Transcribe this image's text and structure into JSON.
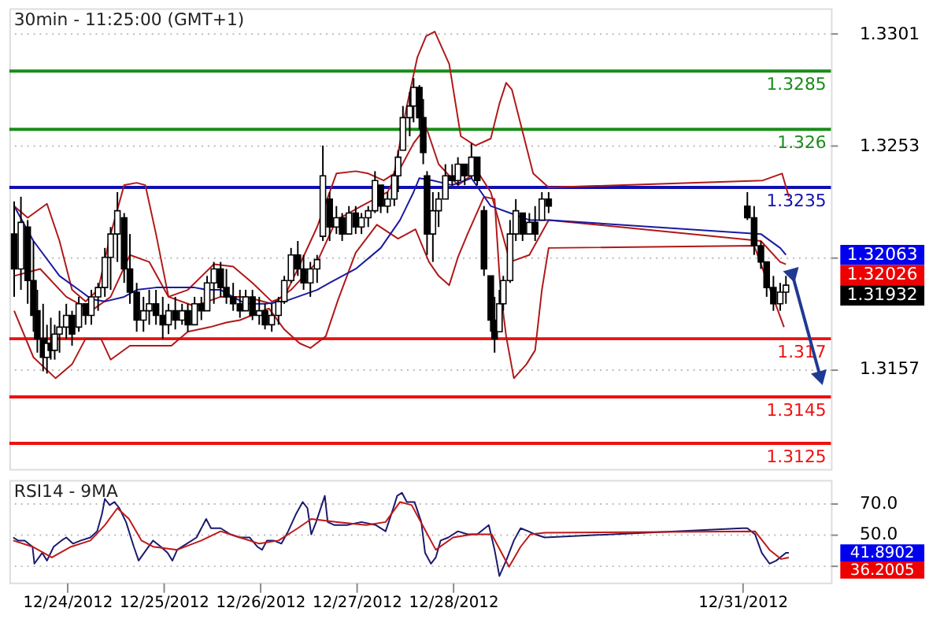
{
  "chart_data": [
    {
      "type": "candlestick",
      "title": "30min - 11:25:00 (GMT+1)",
      "x": [
        "2012-12-23T10:48",
        "2012-12-23T12:29",
        "2012-12-23T14:10",
        "2012-12-23T15:36",
        "2012-12-23T16:34",
        "2012-12-23T18:00",
        "2012-12-23T18:58",
        "2012-12-23T19:55",
        "2012-12-23T20:53",
        "2012-12-23T22:05",
        "2012-12-23T23:46",
        "2012-12-24T01:12",
        "2012-12-24T02:53",
        "2012-12-24T04:34",
        "2012-12-24T06:00",
        "2012-12-24T07:41",
        "2012-12-24T09:22",
        "2012-12-24T10:48",
        "2012-12-24T12:29",
        "2012-12-24T14:10",
        "2012-12-24T15:36",
        "2012-12-24T17:17",
        "2012-12-24T18:58",
        "2012-12-24T20:24",
        "2012-12-24T22:05",
        "2012-12-24T23:46",
        "2012-12-25T01:12",
        "2012-12-25T02:53",
        "2012-12-25T04:34",
        "2012-12-25T06:00",
        "2012-12-25T07:41",
        "2012-12-25T09:22",
        "2012-12-25T10:48",
        "2012-12-25T12:29",
        "2012-12-25T14:10",
        "2012-12-25T15:36",
        "2012-12-25T17:17",
        "2012-12-25T18:58",
        "2012-12-25T20:24",
        "2012-12-25T22:05",
        "2012-12-25T23:46",
        "2012-12-26T01:12",
        "2012-12-26T02:53",
        "2012-12-26T04:34",
        "2012-12-26T06:00",
        "2012-12-26T07:41",
        "2012-12-26T09:22",
        "2012-12-26T10:48",
        "2012-12-26T12:29",
        "2012-12-26T14:10",
        "2012-12-26T15:36",
        "2012-12-26T17:17",
        "2012-12-26T18:58",
        "2012-12-26T20:24",
        "2012-12-26T22:05",
        "2012-12-26T23:46",
        "2012-12-27T01:12",
        "2012-12-27T02:53",
        "2012-12-27T04:34",
        "2012-12-27T06:00",
        "2012-12-27T07:41",
        "2012-12-27T09:22",
        "2012-12-27T10:19",
        "2012-12-27T11:31",
        "2012-12-27T13:12",
        "2012-12-27T14:10",
        "2012-12-27T15:36",
        "2012-12-27T16:34",
        "2012-12-27T17:31",
        "2012-12-27T18:58",
        "2012-12-27T20:24",
        "2012-12-27T22:05",
        "2012-12-27T23:46",
        "2012-12-28T01:12",
        "2012-12-28T02:53",
        "2012-12-28T04:34",
        "2012-12-28T06:00",
        "2012-12-28T07:41",
        "2012-12-28T09:22",
        "2012-12-28T10:19",
        "2012-12-28T11:31",
        "2012-12-28T12:29",
        "2012-12-28T14:10",
        "2012-12-28T15:36",
        "2012-12-28T17:17",
        "2012-12-28T18:58",
        "2012-12-28T20:24",
        "2012-12-28T22:05",
        "2012-12-28T23:46",
        "2012-12-31T01:12",
        "2012-12-31T02:53",
        "2012-12-31T04:34",
        "2012-12-31T06:00",
        "2012-12-31T07:41",
        "2012-12-31T09:22",
        "2012-12-31T10:48"
      ],
      "ohlc": [
        [
          1.3215,
          1.3229,
          1.3188,
          1.32
        ],
        [
          1.32,
          1.3231,
          1.3191,
          1.322
        ],
        [
          1.3218,
          1.3221,
          1.3185,
          1.3195
        ],
        [
          1.3195,
          1.3212,
          1.3173,
          1.318
        ],
        [
          1.3182,
          1.3191,
          1.3164,
          1.317
        ],
        [
          1.317,
          1.3185,
          1.3156,
          1.3162
        ],
        [
          1.3162,
          1.3176,
          1.3155,
          1.3168
        ],
        [
          1.3168,
          1.3179,
          1.3161,
          1.3165
        ],
        [
          1.3165,
          1.3176,
          1.3161,
          1.3172
        ],
        [
          1.3172,
          1.3182,
          1.3164,
          1.3175
        ],
        [
          1.3175,
          1.3185,
          1.317,
          1.318
        ],
        [
          1.318,
          1.3182,
          1.3167,
          1.3172
        ],
        [
          1.3175,
          1.3188,
          1.3173,
          1.3185
        ],
        [
          1.3185,
          1.3185,
          1.3176,
          1.318
        ],
        [
          1.318,
          1.3191,
          1.3176,
          1.3188
        ],
        [
          1.3188,
          1.3194,
          1.3182,
          1.3192
        ],
        [
          1.3192,
          1.3209,
          1.3188,
          1.3205
        ],
        [
          1.3205,
          1.3218,
          1.3191,
          1.3215
        ],
        [
          1.3215,
          1.3233,
          1.3203,
          1.3225
        ],
        [
          1.3222,
          1.3224,
          1.3194,
          1.32
        ],
        [
          1.32,
          1.3215,
          1.3185,
          1.319
        ],
        [
          1.319,
          1.3194,
          1.3173,
          1.3178
        ],
        [
          1.3178,
          1.3188,
          1.3173,
          1.3182
        ],
        [
          1.3182,
          1.3191,
          1.3176,
          1.3185
        ],
        [
          1.3185,
          1.3191,
          1.3176,
          1.318
        ],
        [
          1.318,
          1.3188,
          1.317,
          1.3176
        ],
        [
          1.3176,
          1.3185,
          1.3172,
          1.3182
        ],
        [
          1.3182,
          1.3188,
          1.3174,
          1.3178
        ],
        [
          1.3178,
          1.3185,
          1.3176,
          1.3182
        ],
        [
          1.3182,
          1.3185,
          1.3173,
          1.3176
        ],
        [
          1.3176,
          1.3188,
          1.3176,
          1.3185
        ],
        [
          1.3185,
          1.3188,
          1.3178,
          1.3182
        ],
        [
          1.3182,
          1.3197,
          1.3182,
          1.3194
        ],
        [
          1.3194,
          1.3203,
          1.3185,
          1.32
        ],
        [
          1.32,
          1.3203,
          1.3188,
          1.3192
        ],
        [
          1.3192,
          1.32,
          1.3185,
          1.3188
        ],
        [
          1.3188,
          1.3194,
          1.3182,
          1.3185
        ],
        [
          1.3185,
          1.3191,
          1.3179,
          1.3182
        ],
        [
          1.3182,
          1.3191,
          1.3182,
          1.3188
        ],
        [
          1.3188,
          1.3191,
          1.3178,
          1.318
        ],
        [
          1.318,
          1.3188,
          1.3176,
          1.3182
        ],
        [
          1.3182,
          1.3185,
          1.3174,
          1.3176
        ],
        [
          1.3176,
          1.3185,
          1.3173,
          1.318
        ],
        [
          1.318,
          1.3188,
          1.3176,
          1.3186
        ],
        [
          1.3186,
          1.3197,
          1.3185,
          1.3195
        ],
        [
          1.3195,
          1.3209,
          1.3194,
          1.3206
        ],
        [
          1.3206,
          1.3212,
          1.3197,
          1.32
        ],
        [
          1.32,
          1.3206,
          1.3191,
          1.3194
        ],
        [
          1.3194,
          1.3203,
          1.3188,
          1.32
        ],
        [
          1.32,
          1.3206,
          1.3194,
          1.3204
        ],
        [
          1.3214,
          1.3253,
          1.3212,
          1.324
        ],
        [
          1.323,
          1.3233,
          1.3212,
          1.3218
        ],
        [
          1.3218,
          1.3227,
          1.3215,
          1.3222
        ],
        [
          1.3222,
          1.3224,
          1.3212,
          1.3215
        ],
        [
          1.3215,
          1.3227,
          1.3215,
          1.3224
        ],
        [
          1.3224,
          1.3227,
          1.3215,
          1.3218
        ],
        [
          1.3218,
          1.3224,
          1.3215,
          1.3222
        ],
        [
          1.3222,
          1.3227,
          1.3218,
          1.3225
        ],
        [
          1.3225,
          1.3242,
          1.3224,
          1.3238
        ],
        [
          1.3236,
          1.3236,
          1.3224,
          1.3227
        ],
        [
          1.3227,
          1.3233,
          1.3224,
          1.323
        ],
        [
          1.323,
          1.3242,
          1.3227,
          1.324
        ],
        [
          1.324,
          1.3251,
          1.3233,
          1.3248
        ],
        [
          1.3251,
          1.327,
          1.3251,
          1.3265
        ],
        [
          1.3265,
          1.3276,
          1.3257,
          1.327
        ],
        [
          1.327,
          1.3282,
          1.3263,
          1.3278
        ],
        [
          1.3278,
          1.3279,
          1.326,
          1.3265
        ],
        [
          1.3265,
          1.3273,
          1.3245,
          1.325
        ],
        [
          1.324,
          1.3242,
          1.3206,
          1.3215
        ],
        [
          1.3215,
          1.3233,
          1.3203,
          1.3225
        ],
        [
          1.3225,
          1.3233,
          1.3218,
          1.323
        ],
        [
          1.323,
          1.3245,
          1.323,
          1.324
        ],
        [
          1.324,
          1.3245,
          1.3236,
          1.3238
        ],
        [
          1.3238,
          1.3248,
          1.3236,
          1.3245
        ],
        [
          1.3245,
          1.3245,
          1.3236,
          1.324
        ],
        [
          1.324,
          1.3254,
          1.3239,
          1.3248
        ],
        [
          1.3248,
          1.3248,
          1.3236,
          1.3238
        ],
        [
          1.3225,
          1.3227,
          1.3197,
          1.32
        ],
        [
          1.3197,
          1.3197,
          1.3173,
          1.3178
        ],
        [
          1.3178,
          1.3188,
          1.3164,
          1.317
        ],
        [
          1.3173,
          1.3191,
          1.3173,
          1.3185
        ],
        [
          1.3185,
          1.3197,
          1.3182,
          1.3195
        ],
        [
          1.3195,
          1.3221,
          1.3194,
          1.3215
        ],
        [
          1.3215,
          1.323,
          1.3212,
          1.3225
        ],
        [
          1.3224,
          1.3224,
          1.3212,
          1.3215
        ],
        [
          1.3215,
          1.3224,
          1.3215,
          1.322
        ],
        [
          1.322,
          1.3227,
          1.3212,
          1.3215
        ],
        [
          1.3221,
          1.3233,
          1.3221,
          1.323
        ],
        [
          1.323,
          1.3233,
          1.3224,
          1.3227
        ],
        [
          1.3227,
          1.3233,
          1.3221,
          1.3222
        ],
        [
          1.3222,
          1.3227,
          1.3206,
          1.321
        ],
        [
          1.321,
          1.3212,
          1.32,
          1.3203
        ],
        [
          1.3203,
          1.3203,
          1.3188,
          1.3192
        ],
        [
          1.3192,
          1.3197,
          1.3182,
          1.3185
        ],
        [
          1.3185,
          1.3194,
          1.3182,
          1.319
        ],
        [
          1.319,
          1.3197,
          1.3185,
          1.3193
        ]
      ],
      "series": [
        {
          "type": "line",
          "color": "#b01818",
          "x": [
            "2012-12-23T10:48",
            "2012-12-23T14:10",
            "2012-12-23T18:58",
            "2012-12-23T22:05",
            "2012-12-24T01:12",
            "2012-12-24T04:34",
            "2012-12-24T07:41",
            "2012-12-24T10:48",
            "2012-12-24T14:10",
            "2012-12-24T17:17",
            "2012-12-24T19:26",
            "2012-12-24T22:05",
            "2012-12-25T01:12",
            "2012-12-25T06:00",
            "2012-12-25T12:29",
            "2012-12-25T17:17",
            "2012-12-25T22:05",
            "2012-12-26T02:53",
            "2012-12-26T06:00",
            "2012-12-26T09:22",
            "2012-12-26T14:10",
            "2012-12-26T18:58",
            "2012-12-26T23:46",
            "2012-12-27T02:53",
            "2012-12-27T06:43",
            "2012-12-27T09:22",
            "2012-12-27T12:29",
            "2012-12-27T15:07",
            "2012-12-27T17:17",
            "2012-12-27T19:26",
            "2012-12-27T23:02",
            "2012-12-28T01:55",
            "2012-12-28T05:31",
            "2012-12-28T09:22",
            "2012-12-28T11:31",
            "2012-12-28T13:12",
            "2012-12-28T14:38",
            "2012-12-28T17:17",
            "2012-12-28T19:55",
            "2012-12-28T23:46",
            "2012-12-31T05:02",
            "2012-12-31T09:50",
            "2012-12-31T11:31"
          ],
          "values": [
            1.3227,
            1.3222,
            1.3228,
            1.3212,
            1.3191,
            1.3186,
            1.3191,
            1.3215,
            1.3236,
            1.3237,
            1.3236,
            1.3215,
            1.3188,
            1.3191,
            1.3202,
            1.3201,
            1.3194,
            1.3186,
            1.3188,
            1.32,
            1.3218,
            1.3241,
            1.3242,
            1.3241,
            1.3238,
            1.3241,
            1.327,
            1.3291,
            1.33,
            1.3302,
            1.3288,
            1.3257,
            1.3253,
            1.3256,
            1.3271,
            1.328,
            1.3277,
            1.3259,
            1.3241,
            1.3235,
            1.3238,
            1.3241,
            1.3231
          ]
        },
        {
          "type": "line",
          "color": "#b01818",
          "x": [
            "2012-12-23T10:48",
            "2012-12-23T17:17",
            "2012-12-23T23:46",
            "2012-12-24T06:00",
            "2012-12-24T10:48",
            "2012-12-24T15:36",
            "2012-12-24T20:24",
            "2012-12-25T01:12",
            "2012-12-25T07:41",
            "2012-12-25T14:10",
            "2012-12-25T20:24",
            "2012-12-26T02:53",
            "2012-12-26T07:41",
            "2012-12-26T14:10",
            "2012-12-26T18:58",
            "2012-12-27T01:12",
            "2012-12-27T07:41",
            "2012-12-27T14:10",
            "2012-12-27T17:17",
            "2012-12-27T20:24",
            "2012-12-28T01:12",
            "2012-12-28T06:00",
            "2012-12-28T09:22",
            "2012-12-28T14:10",
            "2012-12-28T18:58",
            "2012-12-28T23:46",
            "2012-12-31T04:34",
            "2012-12-31T09:22",
            "2012-12-31T10:48"
          ],
          "values": [
            1.3197,
            1.32,
            1.3188,
            1.3182,
            1.3188,
            1.3206,
            1.3203,
            1.3188,
            1.3184,
            1.3188,
            1.3188,
            1.3185,
            1.3191,
            1.3203,
            1.3221,
            1.3227,
            1.3233,
            1.3254,
            1.3261,
            1.3245,
            1.3236,
            1.3242,
            1.3233,
            1.3203,
            1.3206,
            1.3221,
            1.3212,
            1.3203,
            1.3202
          ]
        },
        {
          "type": "line",
          "color": "#b01818",
          "x": [
            "2012-12-23T10:48",
            "2012-12-23T15:36",
            "2012-12-23T21:07",
            "2012-12-24T01:12",
            "2012-12-24T04:34",
            "2012-12-24T08:24",
            "2012-12-24T10:48",
            "2012-12-24T15:36",
            "2012-12-24T20:24",
            "2012-12-25T01:55",
            "2012-12-25T06:00",
            "2012-12-25T11:31",
            "2012-12-25T15:36",
            "2012-12-25T18:58",
            "2012-12-26T02:10",
            "2012-12-26T06:00",
            "2012-12-26T09:50",
            "2012-12-26T12:29",
            "2012-12-26T16:19",
            "2012-12-26T19:26",
            "2012-12-26T23:46",
            "2012-12-27T05:02",
            "2012-12-27T10:19",
            "2012-12-27T14:38",
            "2012-12-27T18:00",
            "2012-12-27T20:24",
            "2012-12-27T23:02",
            "2012-12-28T01:12",
            "2012-12-28T03:36",
            "2012-12-28T07:41",
            "2012-12-28T10:19",
            "2012-12-28T11:46",
            "2012-12-28T13:12",
            "2012-12-28T15:07",
            "2012-12-28T18:14",
            "2012-12-28T20:24",
            "2012-12-28T22:05",
            "2012-12-28T23:46",
            "2012-12-31T02:53",
            "2012-12-31T10:19"
          ],
          "values": [
            1.3182,
            1.3162,
            1.3153,
            1.3159,
            1.317,
            1.317,
            1.3161,
            1.3167,
            1.3167,
            1.3167,
            1.3173,
            1.3175,
            1.3177,
            1.3178,
            1.3183,
            1.3174,
            1.3168,
            1.3166,
            1.3171,
            1.3187,
            1.3207,
            1.3219,
            1.3213,
            1.3217,
            1.3203,
            1.3197,
            1.3193,
            1.3205,
            1.3215,
            1.3231,
            1.323,
            1.3191,
            1.3171,
            1.3153,
            1.3159,
            1.3165,
            1.3191,
            1.3209,
            1.321,
            1.3175
          ]
        },
        {
          "type": "line",
          "color": "#1a1aa0",
          "x": [
            "2012-12-23T10:48",
            "2012-12-23T15:36",
            "2012-12-23T22:05",
            "2012-12-24T02:53",
            "2012-12-24T06:00",
            "2012-12-24T09:22",
            "2012-12-24T14:10",
            "2012-12-24T17:17",
            "2012-12-24T22:05",
            "2012-12-25T02:53",
            "2012-12-25T07:41",
            "2012-12-25T10:48",
            "2012-12-25T14:10",
            "2012-12-25T20:24",
            "2012-12-26T01:12",
            "2012-12-26T06:00",
            "2012-12-26T14:10",
            "2012-12-26T17:17",
            "2012-12-26T23:46",
            "2012-12-27T06:00",
            "2012-12-27T10:48",
            "2012-12-27T14:10",
            "2012-12-27T15:36",
            "2012-12-27T18:58",
            "2012-12-27T23:46",
            "2012-12-28T04:34",
            "2012-12-28T09:22",
            "2012-12-28T14:10",
            "2012-12-28T18:58",
            "2012-12-28T23:46",
            "2012-12-31T04:34",
            "2012-12-31T09:22",
            "2012-12-31T10:48"
          ],
          "values": [
            1.3227,
            1.3212,
            1.3197,
            1.3191,
            1.3187,
            1.3186,
            1.3188,
            1.3191,
            1.3192,
            1.3192,
            1.3192,
            1.3191,
            1.3191,
            1.3185,
            1.3185,
            1.3186,
            1.3191,
            1.3194,
            1.32,
            1.3209,
            1.3221,
            1.3233,
            1.3239,
            1.3238,
            1.3236,
            1.3239,
            1.3227,
            1.3224,
            1.3221,
            1.3221,
            1.3215,
            1.3209,
            1.3206
          ]
        },
        {
          "type": "line",
          "color": "#1f3a93",
          "marker": "triangle",
          "x": [
            "2012-12-31T12:29",
            "2012-12-31T19:26"
          ],
          "values": [
            1.3197,
            1.3153
          ]
        }
      ],
      "ref_lines": [
        {
          "axis": "y",
          "value": 1.3285,
          "label": "1.3285",
          "color": "#1a8c1a"
        },
        {
          "axis": "y",
          "value": 1.326,
          "label": "1.326",
          "color": "#1a8c1a"
        },
        {
          "axis": "y",
          "value": 1.3235,
          "label": "1.3235",
          "color": "#1010b0"
        },
        {
          "axis": "y",
          "value": 1.317,
          "label": "1.317",
          "color": "#ee1111"
        },
        {
          "axis": "y",
          "value": 1.3145,
          "label": "1.3145",
          "color": "#ee1111"
        },
        {
          "axis": "y",
          "value": 1.3125,
          "label": "1.3125",
          "color": "#ee1111"
        }
      ],
      "annotations": [
        "1.32063",
        "1.32026",
        "1.31932"
      ],
      "xlim": [
        "2012-12-23T09:36",
        "2012-12-31T22:00"
      ],
      "ylim": [
        1.3114,
        1.3312
      ],
      "yticks": [
        1.3157,
        {
          "value": 1.3205,
          "label": null
        },
        1.3253,
        1.3301
      ],
      "grid": "y",
      "tick_labels": "y"
    },
    {
      "type": "line",
      "title": "RSI14 - 9MA",
      "series": [
        {
          "color": "#1a1a6e",
          "x": [
            "2012-12-23T10:34",
            "2012-12-23T11:46",
            "2012-12-23T13:26",
            "2012-12-23T15:22",
            "2012-12-23T15:50",
            "2012-12-23T17:46",
            "2012-12-23T18:58",
            "2012-12-23T20:38",
            "2012-12-23T22:34",
            "2012-12-23T23:46",
            "2012-12-24T01:26",
            "2012-12-24T03:22",
            "2012-12-24T05:46",
            "2012-12-24T07:26",
            "2012-12-24T08:38",
            "2012-12-24T09:22",
            "2012-12-24T10:34",
            "2012-12-24T11:46",
            "2012-12-24T12:58",
            "2012-12-24T14:38",
            "2012-12-24T16:34",
            "2012-12-24T17:46",
            "2012-12-24T19:41",
            "2012-12-24T21:22",
            "2012-12-24T23:17",
            "2012-12-25T00:58",
            "2012-12-25T02:10",
            "2012-12-25T03:22",
            "2012-12-25T05:46",
            "2012-12-25T08:10",
            "2012-12-25T10:34",
            "2012-12-25T11:46",
            "2012-12-25T14:10",
            "2012-12-25T16:34",
            "2012-12-25T18:58",
            "2012-12-25T21:22",
            "2012-12-25T23:17",
            "2012-12-26T00:29",
            "2012-12-26T01:41",
            "2012-12-26T03:22",
            "2012-12-26T05:17",
            "2012-12-26T06:58",
            "2012-12-26T08:53",
            "2012-12-26T10:34",
            "2012-12-26T11:46",
            "2012-12-26T12:43",
            "2012-12-26T13:55",
            "2012-12-26T16:05",
            "2012-12-26T16:48",
            "2012-12-26T18:29",
            "2012-12-26T21:36",
            "2012-12-27T01:12",
            "2012-12-27T04:48",
            "2012-12-27T07:12",
            "2012-12-27T08:53",
            "2012-12-27T10:05",
            "2012-12-27T11:17",
            "2012-12-27T12:29",
            "2012-12-27T14:24",
            "2012-12-27T16:05",
            "2012-12-27T17:02",
            "2012-12-27T18:29",
            "2012-12-27T19:41",
            "2012-12-27T20:53",
            "2012-12-27T22:48",
            "2012-12-28T01:12",
            "2012-12-28T03:36",
            "2012-12-28T06:00",
            "2012-12-28T08:53",
            "2012-12-28T10:19",
            "2012-12-28T11:31",
            "2012-12-28T13:12",
            "2012-12-28T15:07",
            "2012-12-28T16:48",
            "2012-12-28T18:43",
            "2012-12-28T20:24",
            "2012-12-28T22:48",
            "2012-12-31T00:00",
            "2012-12-31T01:12",
            "2012-12-31T03:07",
            "2012-12-31T04:48",
            "2012-12-31T06:43",
            "2012-12-31T08:24",
            "2012-12-31T10:48",
            "2012-12-31T11:31"
          ],
          "values": [
            48,
            46,
            46,
            42,
            31,
            38,
            33,
            42,
            46,
            48,
            44,
            46,
            48,
            52,
            63,
            73,
            69,
            71,
            67,
            58,
            42,
            33,
            40,
            46,
            42,
            38,
            33,
            40,
            44,
            48,
            60,
            54,
            54,
            50,
            48,
            48,
            42,
            40,
            46,
            46,
            44,
            52,
            63,
            71,
            67,
            50,
            58,
            75,
            58,
            56,
            56,
            58,
            56,
            52,
            65,
            75,
            77,
            71,
            71,
            58,
            38,
            31,
            35,
            46,
            48,
            52,
            50,
            50,
            56,
            40,
            23,
            33,
            46,
            54,
            52,
            50,
            48,
            54,
            54,
            50,
            38,
            31,
            33,
            38,
            38
          ]
        },
        {
          "color": "#c01818",
          "x": [
            "2012-12-23T10:34",
            "2012-12-23T15:22",
            "2012-12-23T20:10",
            "2012-12-24T00:58",
            "2012-12-24T05:46",
            "2012-12-24T09:22",
            "2012-12-24T12:29",
            "2012-12-24T15:22",
            "2012-12-24T18:29",
            "2012-12-24T21:22",
            "2012-12-25T03:22",
            "2012-12-25T09:22",
            "2012-12-25T14:10",
            "2012-12-25T18:58",
            "2012-12-25T23:46",
            "2012-12-26T04:34",
            "2012-12-26T09:22",
            "2012-12-26T12:43",
            "2012-12-26T19:12",
            "2012-12-27T02:24",
            "2012-12-27T07:12",
            "2012-12-27T10:48",
            "2012-12-27T13:41",
            "2012-12-27T16:48",
            "2012-12-27T19:41",
            "2012-12-28T00:00",
            "2012-12-28T04:48",
            "2012-12-28T09:36",
            "2012-12-28T13:55",
            "2012-12-28T16:48",
            "2012-12-28T19:12",
            "2012-12-28T22:48",
            "2012-12-31T03:07",
            "2012-12-31T06:43",
            "2012-12-31T09:36",
            "2012-12-31T11:31"
          ],
          "values": [
            46,
            42,
            35,
            42,
            46,
            56,
            67,
            60,
            46,
            42,
            40,
            46,
            52,
            48,
            44,
            46,
            54,
            60,
            58,
            56,
            58,
            71,
            69,
            54,
            40,
            48,
            50,
            50,
            29,
            42,
            50,
            51,
            52,
            40,
            34,
            35
          ]
        }
      ],
      "annotations": [
        "41.8902",
        "36.2005"
      ],
      "xlim": [
        "2012-12-23T09:36",
        "2012-12-31T22:00"
      ],
      "xticks": [
        {
          "value": "2012-12-24",
          "label": "12/24/2012"
        },
        {
          "value": "2012-12-25",
          "label": "12/25/2012"
        },
        {
          "value": "2012-12-26",
          "label": "12/26/2012"
        },
        {
          "value": "2012-12-27",
          "label": "12/27/2012"
        },
        {
          "value": "2012-12-28",
          "label": "12/28/2012"
        },
        {
          "value": "2012-12-31",
          "label": "12/31/2012"
        }
      ],
      "ylim": [
        18.7,
        85.3
      ],
      "yticks": [
        {
          "value": 30,
          "label": null
        },
        {
          "value": 50,
          "label": "50.0"
        },
        {
          "value": 70,
          "label": "70.0"
        }
      ],
      "grid": "y"
    }
  ]
}
